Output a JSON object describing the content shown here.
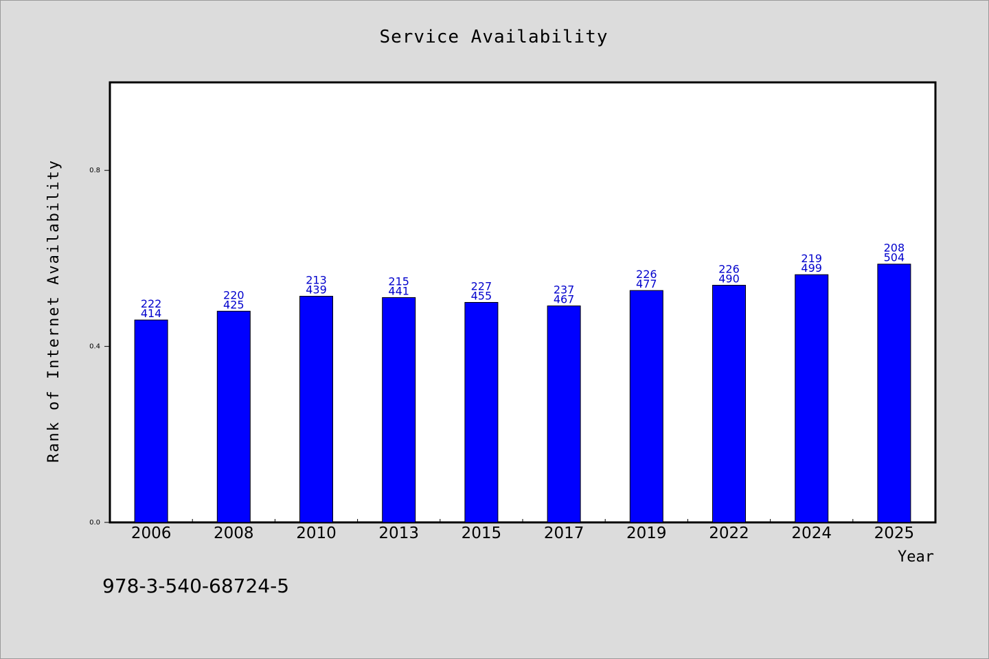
{
  "chart_data": {
    "type": "bar",
    "title": "Service Availability",
    "xlabel": "Year",
    "ylabel": "Rank of Internet Availability",
    "categories": [
      "2006",
      "2008",
      "2010",
      "2013",
      "2015",
      "2017",
      "2019",
      "2022",
      "2024",
      "2025"
    ],
    "values": [
      0.46,
      0.48,
      0.514,
      0.511,
      0.5,
      0.492,
      0.527,
      0.539,
      0.563,
      0.587
    ],
    "data_labels_top": [
      "222",
      "220",
      "213",
      "215",
      "227",
      "237",
      "226",
      "226",
      "219",
      "208"
    ],
    "data_labels_bottom": [
      "414",
      "425",
      "439",
      "441",
      "455",
      "467",
      "477",
      "490",
      "499",
      "504"
    ],
    "yticks": [
      0.0,
      0.4,
      0.8
    ],
    "ytick_labels": [
      "0.0",
      "0.4",
      "0.8"
    ],
    "ylim": [
      0,
      1.0
    ],
    "grid": false,
    "bar_color": "#0000ff",
    "label_color": "#0000cc",
    "background_color": "#dcdcdc",
    "plot_background_color": "#ffffff"
  },
  "footer": {
    "note": "978-3-540-68724-5"
  }
}
